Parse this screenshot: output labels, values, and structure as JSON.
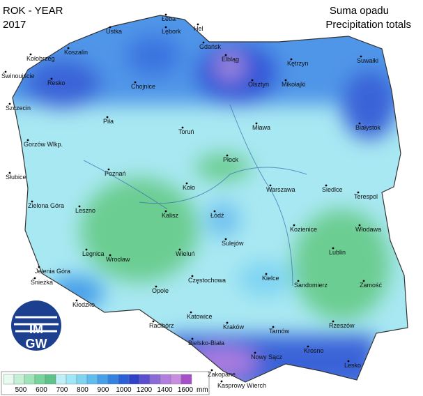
{
  "header": {
    "title": "ROK - YEAR",
    "year": "2017",
    "subtitle": "Suma opadu",
    "subtitle_en": "Precipitation totals"
  },
  "cities": [
    "Łeba",
    "Hel",
    "Ustka",
    "Lębork",
    "Koszalin",
    "Kołobrzeg",
    "Gdańsk",
    "Elbląg",
    "Kętrzyn",
    "Suwałki",
    "Świnoujście",
    "Resko",
    "Chojnice",
    "Olsztyn",
    "Mikołajki",
    "Szczecin",
    "Piła",
    "Toruń",
    "Mława",
    "Białystok",
    "Gorzów Wlkp.",
    "Płock",
    "Poznań",
    "Słubice",
    "Koło",
    "Warszawa",
    "Siedlce",
    "Terespol",
    "Zielona Góra",
    "Leszno",
    "Kalisz",
    "Łódź",
    "Kozienice",
    "Włodawa",
    "Sulejów",
    "Legnica",
    "Wrocław",
    "Wieluń",
    "Lublin",
    "Jelenia Góra",
    "Śnieżka",
    "Kielce",
    "Częstochowa",
    "Sandomierz",
    "Zamość",
    "Opole",
    "Kłodzko",
    "Racibórz",
    "Katowice",
    "Kraków",
    "Rzeszów",
    "Tarnów",
    "Bielsko-Biała",
    "Krosno",
    "Nowy Sącz",
    "Lesko",
    "Zakopane",
    "Kasprowy Wierch"
  ],
  "legend": {
    "colors": [
      "#e6faf0",
      "#c6f0d6",
      "#9fe3b8",
      "#78d39a",
      "#5ec38a",
      "#bdf1f7",
      "#9fe6f6",
      "#7fd4f3",
      "#5fbcef",
      "#469fe9",
      "#3580e3",
      "#2a5fd8",
      "#2e41c9",
      "#5a4fd0",
      "#8a6ad8",
      "#b07fe0",
      "#c98de0",
      "#a54fc8"
    ],
    "labels": [
      "500",
      "600",
      "700",
      "800",
      "900",
      "1000",
      "1200",
      "1400",
      "1600"
    ],
    "unit": "mm"
  },
  "logo": {
    "top": "IM",
    "bottom": "GW"
  }
}
